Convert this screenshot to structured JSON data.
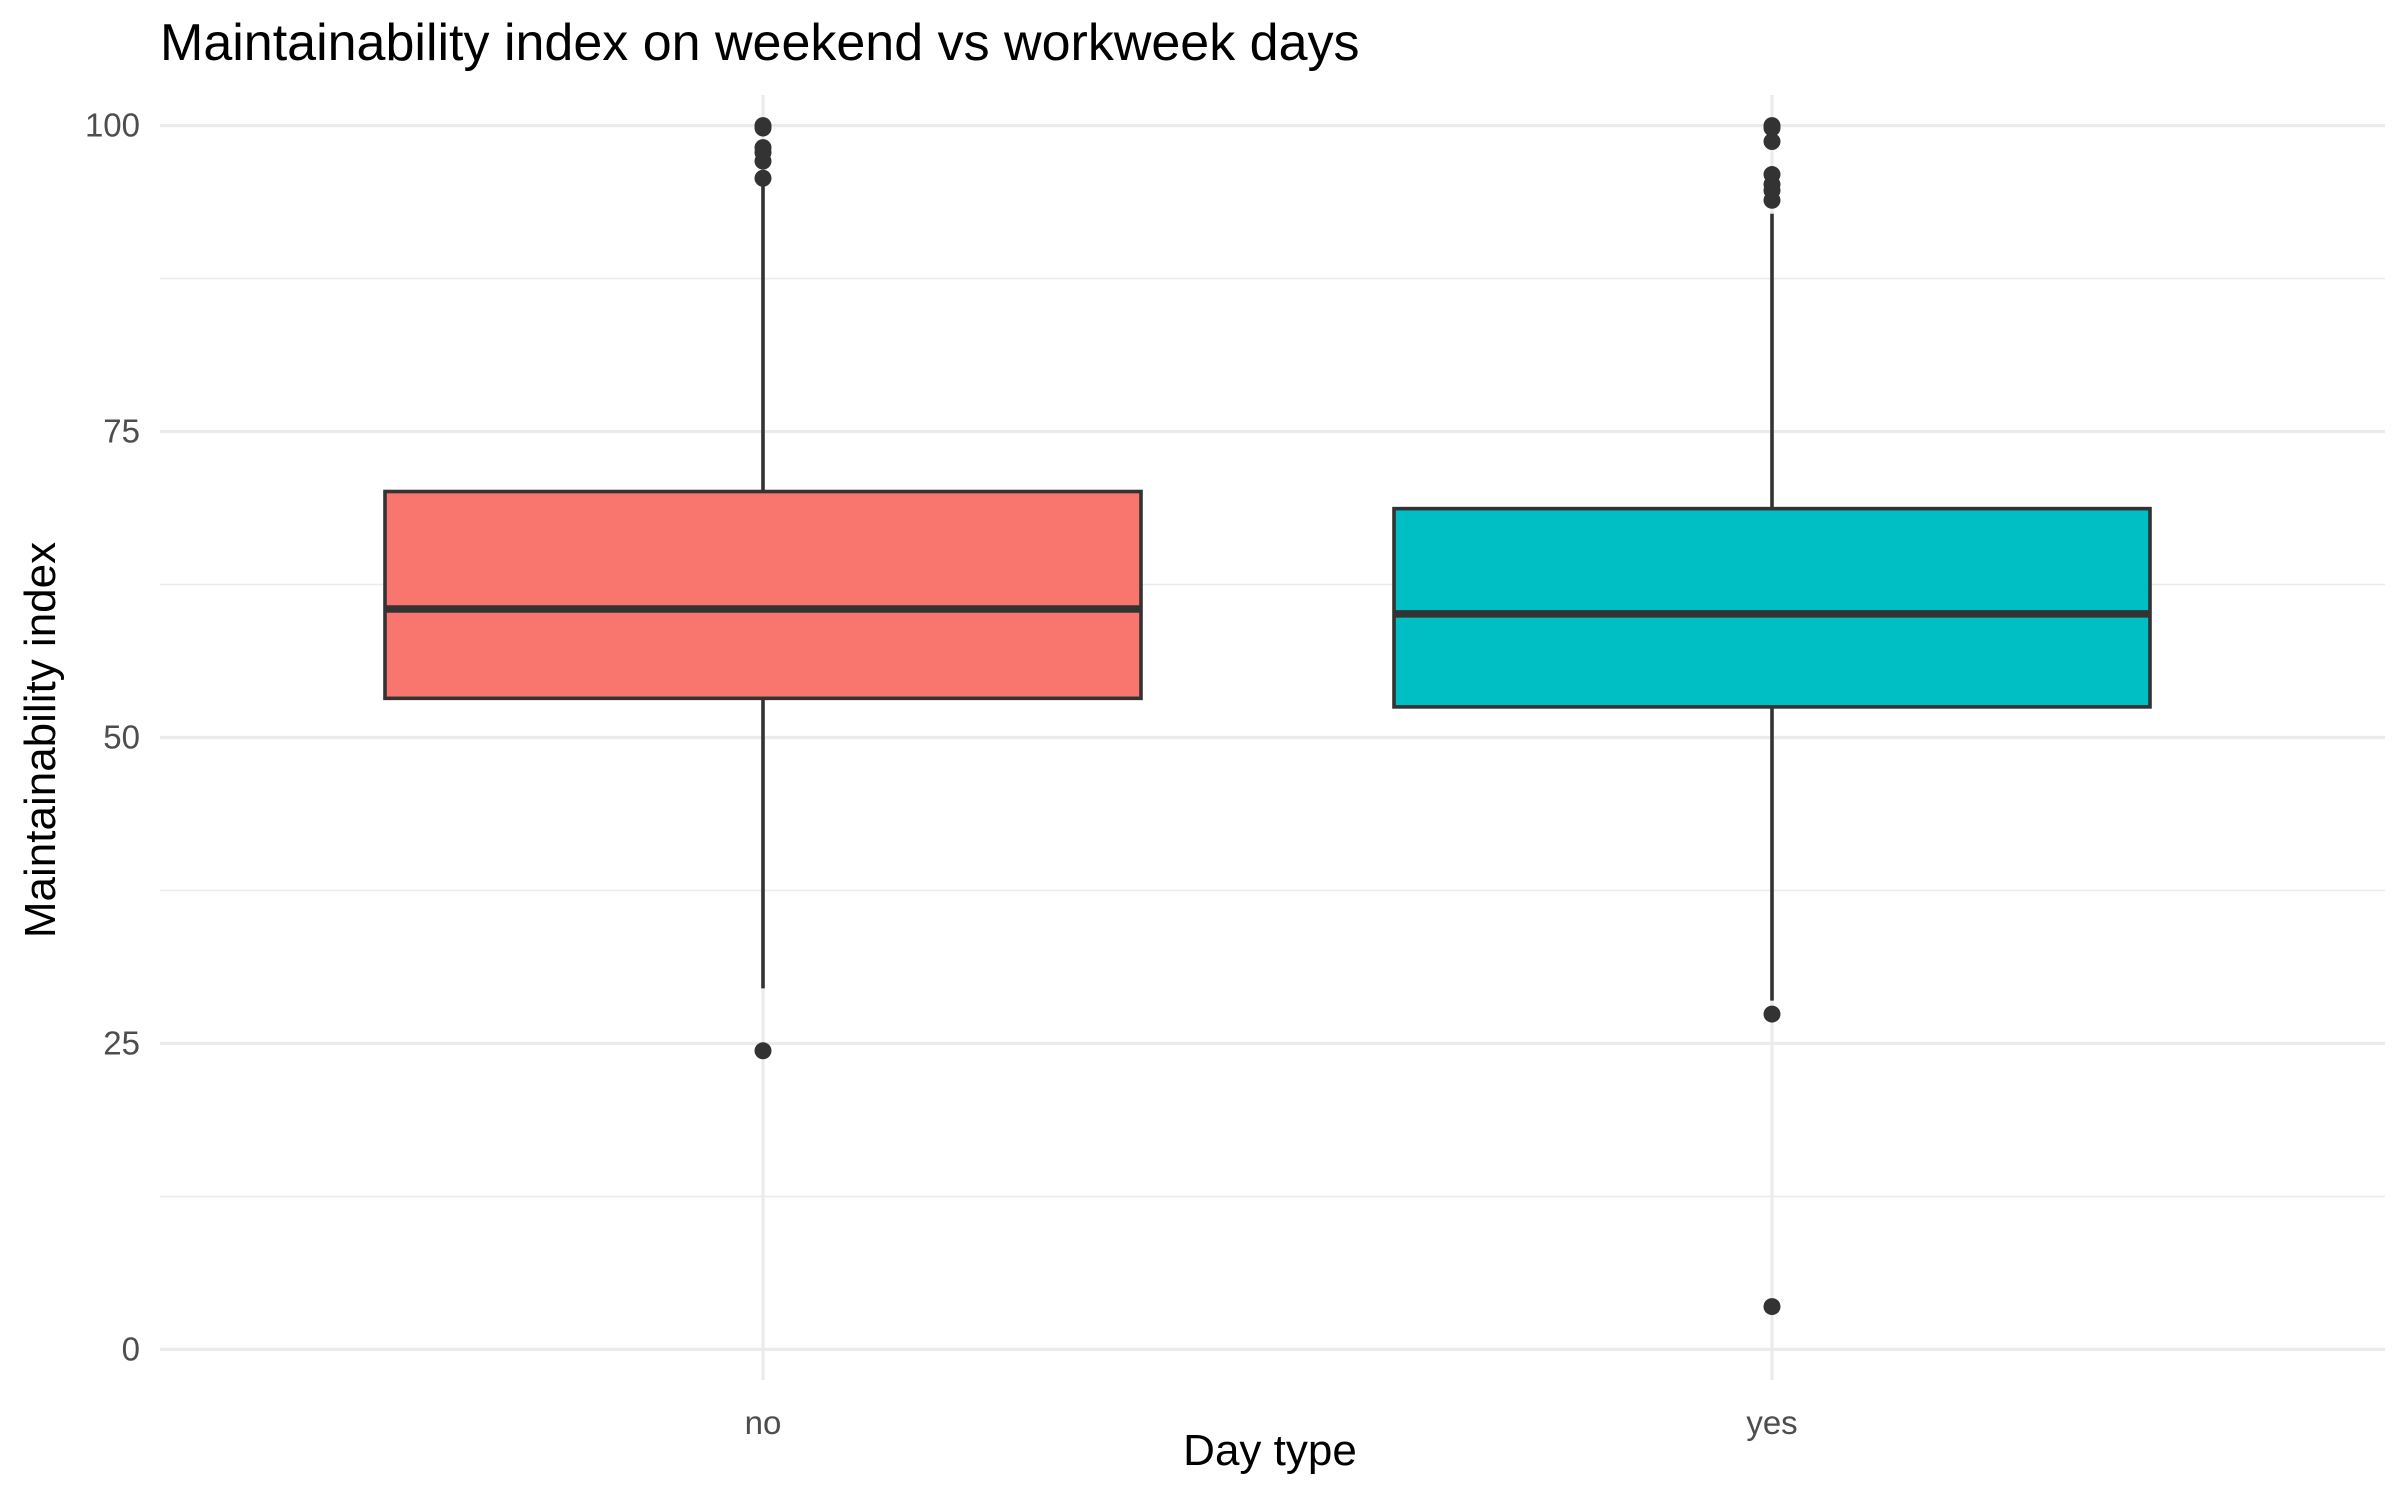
{
  "chart_data": {
    "type": "boxplot",
    "title": "Maintainability index on weekend vs workweek days",
    "xlabel": "Day type",
    "ylabel": "Maintainability index",
    "ylim": [
      -2.5,
      102.5
    ],
    "yticks": [
      0,
      25,
      50,
      75,
      100
    ],
    "grid": true,
    "legend": "none",
    "categories": [
      "no",
      "yes"
    ],
    "boxes": [
      {
        "category": "no",
        "color": "#F8766D",
        "q1": 53.2,
        "median": 60.5,
        "q3": 70.1,
        "whisker_low": 29.5,
        "whisker_high": 95.5,
        "outliers": [
          24.4,
          95.7,
          97.1,
          97.8,
          98.2,
          99.8,
          100
        ]
      },
      {
        "category": "yes",
        "color": "#00BFC4",
        "q1": 52.5,
        "median": 60.1,
        "q3": 68.7,
        "whisker_low": 28.5,
        "whisker_high": 92.8,
        "outliers": [
          3.5,
          27.4,
          93.9,
          94.7,
          95.2,
          96.0,
          98.7,
          99.8,
          100
        ]
      }
    ]
  }
}
